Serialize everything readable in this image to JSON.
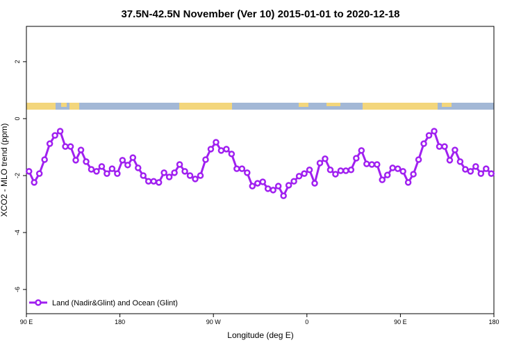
{
  "chart_data": {
    "type": "line",
    "title": "37.5N-42.5N November (Ver 10)   2015-01-01 to 2020-12-18",
    "x_label": "Longitude (deg E)",
    "y_label": "XCO2 - MLO trend (ppm)",
    "xlim": [
      90,
      540
    ],
    "xticks": [
      {
        "value": 90,
        "label": "90 E"
      },
      {
        "value": 180,
        "label": "180"
      },
      {
        "value": 270,
        "label": "90 W"
      },
      {
        "value": 360,
        "label": "0"
      },
      {
        "value": 450,
        "label": "90 E"
      },
      {
        "value": 540,
        "label": "180"
      }
    ],
    "ylim": [
      -6.85,
      3.24
    ],
    "yticks": [
      -6,
      -4,
      -2,
      0,
      2
    ],
    "legend": "bottom-left",
    "x": [
      92.5,
      97.5,
      102.5,
      107.5,
      112.5,
      117.5,
      122.5,
      127.5,
      132.5,
      137.5,
      142.5,
      147.5,
      152.5,
      157.5,
      162.5,
      167.5,
      172.5,
      177.5,
      182.5,
      187.5,
      192.5,
      197.5,
      202.5,
      207.5,
      212.5,
      217.5,
      222.5,
      227.5,
      232.5,
      237.5,
      242.5,
      247.5,
      252.5,
      257.5,
      262.5,
      267.5,
      272.5,
      277.5,
      282.5,
      287.5,
      292.5,
      297.5,
      302.5,
      307.5,
      312.5,
      317.5,
      322.5,
      327.5,
      332.5,
      337.5,
      342.5,
      347.5,
      352.5,
      357.5,
      362.5,
      367.5,
      372.5,
      377.5,
      382.5,
      387.5,
      392.5,
      397.5,
      402.5,
      407.5,
      412.5,
      417.5,
      422.5,
      427.5,
      432.5,
      437.5,
      442.5,
      447.5,
      452.5,
      457.5,
      462.5,
      467.5,
      472.5,
      477.5,
      482.5,
      487.5,
      492.5,
      497.5,
      502.5,
      507.5,
      512.5,
      517.5,
      522.5,
      527.5,
      532.5,
      537.5
    ],
    "series": [
      {
        "name": "Land (Nadir&Glint) and Ocean (Glint)",
        "color": "#a020f0",
        "values": [
          -1.85,
          -2.24,
          -1.93,
          -1.44,
          -0.88,
          -0.59,
          -0.44,
          -0.98,
          -0.98,
          -1.46,
          -1.1,
          -1.51,
          -1.78,
          -1.85,
          -1.68,
          -1.93,
          -1.76,
          -1.93,
          -1.46,
          -1.63,
          -1.37,
          -1.73,
          -2.0,
          -2.2,
          -2.2,
          -2.24,
          -1.9,
          -2.05,
          -1.9,
          -1.61,
          -1.85,
          -2.0,
          -2.12,
          -2.0,
          -1.44,
          -1.07,
          -0.83,
          -1.12,
          -1.07,
          -1.24,
          -1.76,
          -1.76,
          -1.9,
          -2.37,
          -2.27,
          -2.22,
          -2.46,
          -2.51,
          -2.37,
          -2.71,
          -2.34,
          -2.2,
          -2.02,
          -1.93,
          -1.8,
          -2.27,
          -1.56,
          -1.41,
          -1.8,
          -1.95,
          -1.83,
          -1.83,
          -1.8,
          -1.39,
          -1.12,
          -1.59,
          -1.61,
          -1.61,
          -2.15,
          -1.98,
          -1.73,
          -1.76,
          -1.85,
          -2.24,
          -1.95,
          -1.44,
          -0.88,
          -0.59,
          -0.44,
          -0.98,
          -0.98,
          -1.46,
          -1.1,
          -1.51,
          -1.78,
          -1.85,
          -1.68,
          -1.93,
          -1.76,
          -1.93
        ]
      }
    ]
  }
}
